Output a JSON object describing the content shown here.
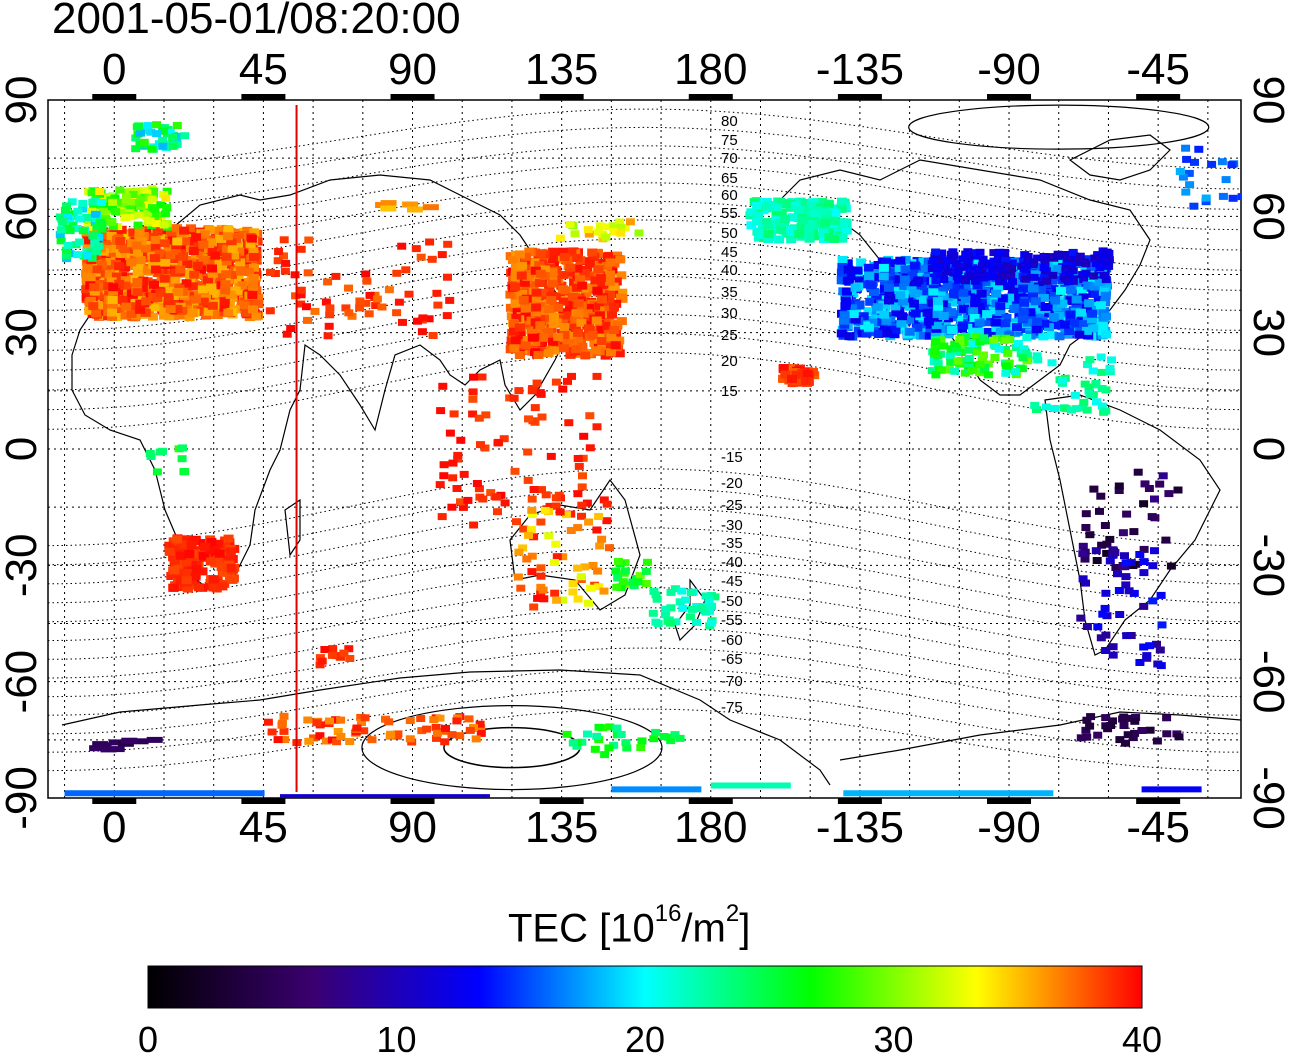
{
  "title": "2001-05-01/08:20:00",
  "map": {
    "lon_ticks_top": [
      "0",
      "45",
      "90",
      "135",
      "180",
      "-135",
      "-90",
      "-45"
    ],
    "lon_ticks_bottom": [
      "0",
      "45",
      "90",
      "135",
      "180",
      "-135",
      "-90",
      "-45"
    ],
    "lat_ticks_left": [
      "90",
      "60",
      "30",
      "0",
      "-30",
      "-60",
      "-90"
    ],
    "lat_ticks_right": [
      "90",
      "60",
      "30",
      "0",
      "-30",
      "-60",
      "-90"
    ],
    "lon_range": [
      -20,
      340
    ],
    "lat_range": [
      -90,
      90
    ],
    "grid": true,
    "red_meridian_lon": 55,
    "contour_labels": [
      "80",
      "75",
      "70",
      "65",
      "60",
      "55",
      "50",
      "45",
      "40",
      "35",
      "30",
      "25",
      "20",
      "15",
      "-15",
      "-20",
      "-25",
      "-30",
      "-35",
      "-40",
      "-45",
      "-50",
      "-55",
      "-60",
      "-65",
      "-70",
      "-75"
    ]
  },
  "colorbar": {
    "label_main": "TEC  [10",
    "label_sup1": "16",
    "label_mid": "/m",
    "label_sup2": "2",
    "label_end": "]",
    "ticks": [
      "0",
      "10",
      "20",
      "30",
      "40"
    ],
    "range": [
      0,
      40
    ],
    "colormap": [
      "#000000",
      "#3a0070",
      "#0000ff",
      "#00ffff",
      "#00ff00",
      "#ffff00",
      "#ff0000"
    ]
  }
}
